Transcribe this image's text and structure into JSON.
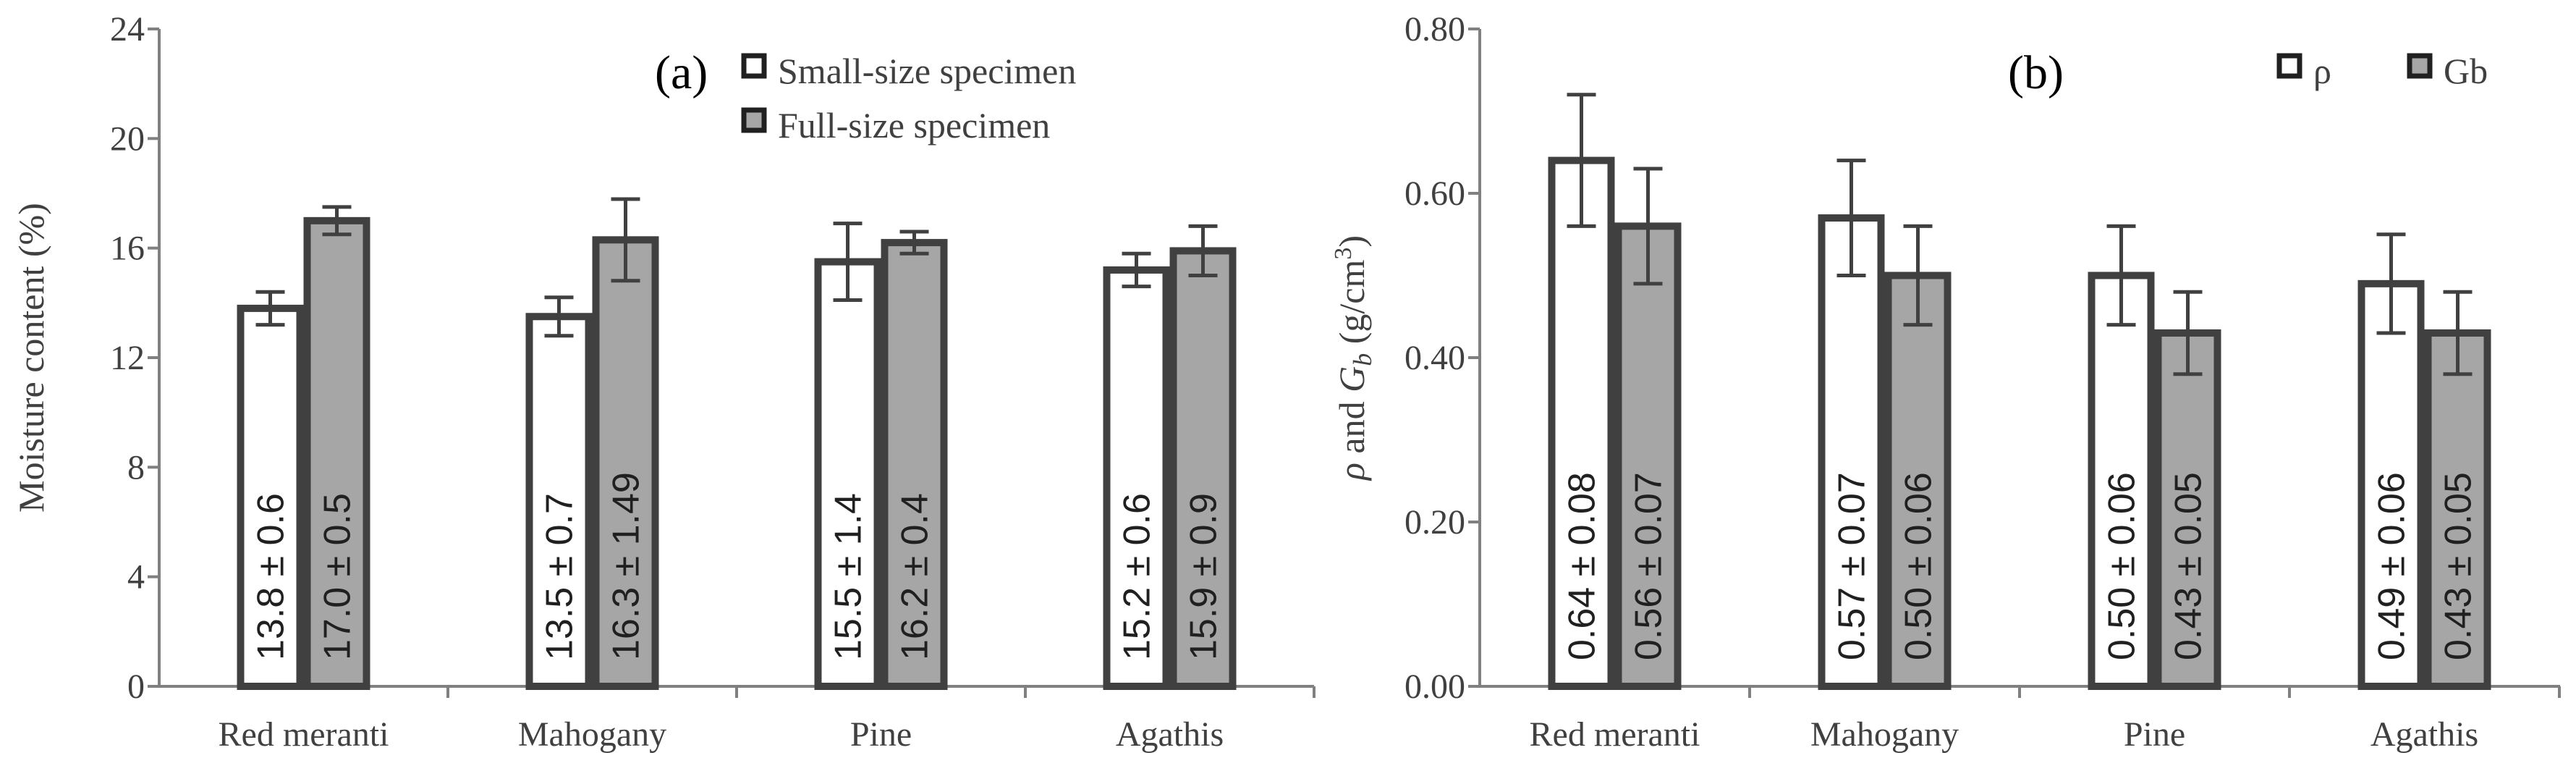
{
  "chart_data": [
    {
      "type": "bar",
      "panel_label": "(a)",
      "categories": [
        "Red meranti",
        "Mahogany",
        "Pine",
        "Agathis"
      ],
      "series": [
        {
          "name": "Small-size specimen",
          "fill": "#ffffff",
          "values": [
            13.8,
            13.5,
            15.5,
            15.2
          ],
          "errors": [
            0.6,
            0.7,
            1.4,
            0.6
          ],
          "value_labels": [
            "13.8 ± 0.6",
            "13.5 ± 0.7",
            "15.5 ± 1.4",
            "15.2 ± 0.6"
          ]
        },
        {
          "name": "Full-size specimen",
          "fill": "#a6a6a6",
          "values": [
            17.0,
            16.3,
            16.2,
            15.9
          ],
          "errors": [
            0.5,
            1.49,
            0.4,
            0.9
          ],
          "value_labels": [
            "17.0 ± 0.5",
            "16.3 ± 1.49",
            "16.2 ± 0.4",
            "15.9 ± 0.9"
          ]
        }
      ],
      "ylabel": "Moisture content (%)",
      "xlabel": "",
      "ylim": [
        0,
        24
      ],
      "yticks": [
        0,
        4,
        8,
        12,
        16,
        20,
        24
      ],
      "ytick_labels": [
        "0",
        "4",
        "8",
        "12",
        "16",
        "20",
        "24"
      ],
      "legend_position": "top-right",
      "grid": false
    },
    {
      "type": "bar",
      "panel_label": "(b)",
      "categories": [
        "Red meranti",
        "Mahogany",
        "Pine",
        "Agathis"
      ],
      "series": [
        {
          "name": "ρ",
          "fill": "#ffffff",
          "values": [
            0.64,
            0.57,
            0.5,
            0.49
          ],
          "errors": [
            0.08,
            0.07,
            0.06,
            0.06
          ],
          "value_labels": [
            "0.64 ± 0.08",
            "0.57 ± 0.07",
            "0.50 ± 0.06",
            "0.49 ± 0.06"
          ]
        },
        {
          "name": "Gb",
          "fill": "#a6a6a6",
          "values": [
            0.56,
            0.5,
            0.43,
            0.43
          ],
          "errors": [
            0.07,
            0.06,
            0.05,
            0.05
          ],
          "value_labels": [
            "0.56 ± 0.07",
            "0.50 ± 0.06",
            "0.43 ± 0.05",
            "0.43 ± 0.05"
          ]
        }
      ],
      "ylabel_parts": {
        "rho": "ρ",
        "and": " and ",
        "g": "G",
        "sub": "b",
        "unit": " (g/cm",
        "sup": "3",
        "close": ")"
      },
      "xlabel": "",
      "ylim": [
        0,
        0.8
      ],
      "yticks": [
        0,
        0.2,
        0.4,
        0.6,
        0.8
      ],
      "ytick_labels": [
        "0.00",
        "0.20",
        "0.40",
        "0.60",
        "0.80"
      ],
      "legend_position": "top-right",
      "grid": false
    }
  ],
  "colors": {
    "bar_stroke": "#404040",
    "axis": "#808080",
    "error_bar": "#404040"
  }
}
